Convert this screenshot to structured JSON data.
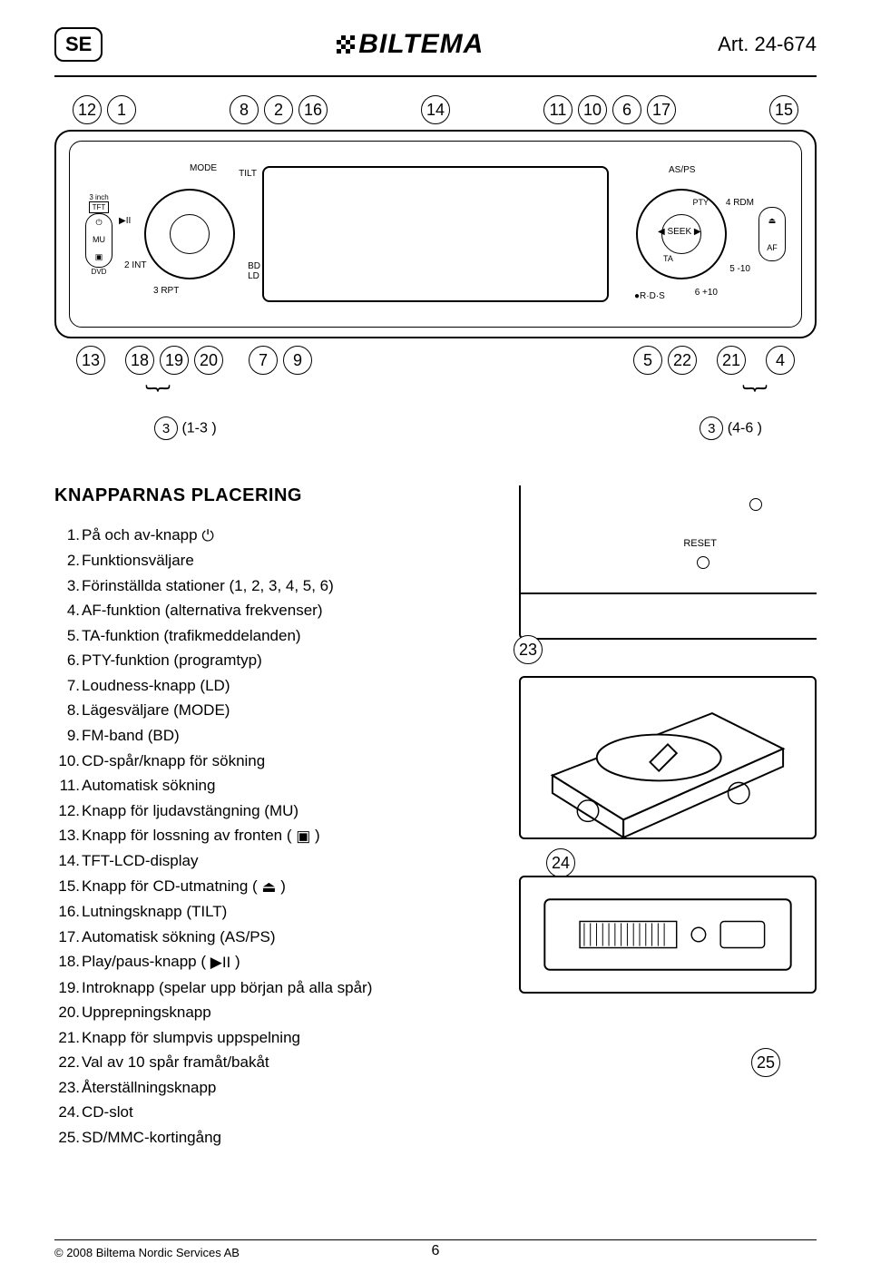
{
  "header": {
    "lang_badge": "SE",
    "logo_text": "BILTEMA",
    "article": "Art. 24-674"
  },
  "callouts": {
    "top": [
      [
        "12",
        "1"
      ],
      [
        "8",
        "2",
        "16"
      ],
      [
        "14"
      ],
      [
        "11",
        "10",
        "6",
        "17"
      ],
      [
        "15"
      ]
    ],
    "bottom_left": [
      "13",
      "18",
      "19",
      "20",
      "7",
      "9"
    ],
    "bottom_right": [
      "5",
      "22",
      "21",
      "4"
    ],
    "sub_left_num": "3",
    "sub_left_txt": "(1-3 )",
    "sub_right_num": "3",
    "sub_right_txt": "(4-6 )"
  },
  "device": {
    "tft_label": "3 inch",
    "tft_box": "TFT",
    "mu": "MU",
    "mode": "MODE",
    "tilt": "TILT",
    "int": "2 INT",
    "rpt": "3 RPT",
    "bd": "BD",
    "ld": "LD",
    "dvd": "DVD",
    "sd": "",
    "asps": "AS/PS",
    "pty": "PTY",
    "seek": "SEEK",
    "ta": "TA",
    "rdm": "4 RDM",
    "minus10": "5 -10",
    "plus10": "6 +10",
    "af": "AF",
    "rds": "R·D·S"
  },
  "section_title": "KNAPPARNAS PLACERING",
  "list": [
    {
      "n": "1.",
      "t": "På och av-knapp ",
      "icon": "power"
    },
    {
      "n": "2.",
      "t": "Funktionsväljare"
    },
    {
      "n": "3.",
      "t": "Förinställda stationer (1, 2, 3, 4, 5, 6)"
    },
    {
      "n": "4.",
      "t": "AF-funktion (alternativa frekvenser)"
    },
    {
      "n": "5.",
      "t": "TA-funktion (trafikmeddelanden)"
    },
    {
      "n": "6.",
      "t": "PTY-funktion (programtyp)"
    },
    {
      "n": "7.",
      "t": "Loudness-knapp (LD)"
    },
    {
      "n": "8.",
      "t": "Lägesväljare (MODE)"
    },
    {
      "n": "9.",
      "t": "FM-band (BD)"
    },
    {
      "n": "10.",
      "t": "CD-spår/knapp för sökning"
    },
    {
      "n": "11.",
      "t": "Automatisk sökning"
    },
    {
      "n": "12.",
      "t": "Knapp för ljudavstängning (MU)"
    },
    {
      "n": "13.",
      "t": "Knapp för lossning av fronten ( ",
      "icon": "eject-box",
      "tail": " )"
    },
    {
      "n": "14.",
      "t": "TFT-LCD-display"
    },
    {
      "n": "15.",
      "t": "Knapp för CD-utmatning ( ",
      "icon": "eject",
      "tail": " )"
    },
    {
      "n": "16.",
      "t": "Lutningsknapp (TILT)"
    },
    {
      "n": "17.",
      "t": "Automatisk sökning (AS/PS)"
    },
    {
      "n": "18.",
      "t": "Play/paus-knapp ( ",
      "icon": "playpause",
      "tail": " )"
    },
    {
      "n": "19.",
      "t": "Introknapp (spelar upp början på alla spår)"
    },
    {
      "n": "20.",
      "t": "Upprepningsknapp"
    },
    {
      "n": "21.",
      "t": "Knapp för slumpvis uppspelning"
    },
    {
      "n": "22.",
      "t": "Val av 10 spår framåt/bakåt"
    },
    {
      "n": "23.",
      "t": "Återställningsknapp"
    },
    {
      "n": "24.",
      "t": "CD-slot"
    },
    {
      "n": "25.",
      "t": "SD/MMC-kortingång"
    }
  ],
  "fig": {
    "reset_label": "RESET",
    "c23": "23",
    "c24": "24",
    "c25": "25"
  },
  "footer": {
    "copyright": "© 2008 Biltema Nordic Services AB",
    "page": "6"
  }
}
